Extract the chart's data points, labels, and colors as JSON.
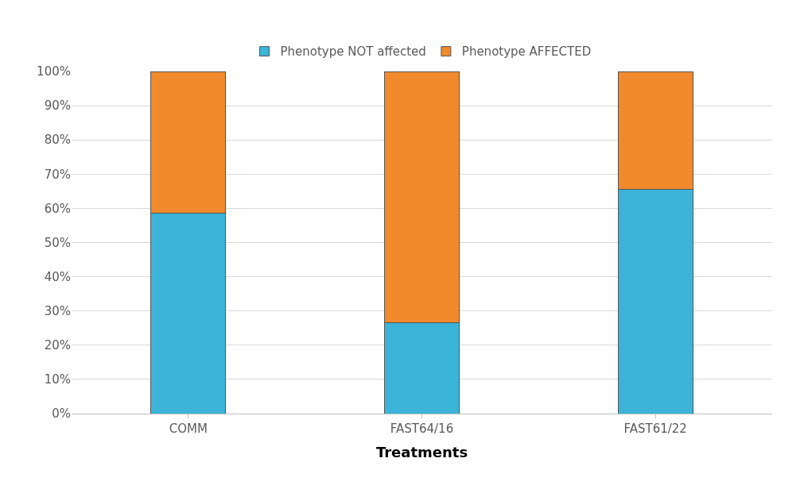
{
  "chart_data": {
    "type": "bar",
    "stacked": true,
    "xlabel": "Treatments",
    "categories": [
      "COMM",
      "FAST64/16",
      "FAST61/22"
    ],
    "series": [
      {
        "name": "Phenotype NOT affected",
        "color": "#3bb4d8",
        "values": [
          58.5,
          26.5,
          65.5
        ]
      },
      {
        "name": "Phenotype AFFECTED",
        "color": "#f08a2c",
        "values": [
          41.5,
          73.5,
          34.5
        ]
      }
    ],
    "ylim": [
      0,
      100
    ],
    "yticks": [
      {
        "value": 0,
        "label": "0%"
      },
      {
        "value": 10,
        "label": "10%"
      },
      {
        "value": 20,
        "label": "20%"
      },
      {
        "value": 30,
        "label": "30%"
      },
      {
        "value": 40,
        "label": "40%"
      },
      {
        "value": 50,
        "label": "50%"
      },
      {
        "value": 60,
        "label": "60%"
      },
      {
        "value": 70,
        "label": "70%"
      },
      {
        "value": 80,
        "label": "80%"
      },
      {
        "value": 90,
        "label": "90%"
      },
      {
        "value": 100,
        "label": "100%"
      }
    ],
    "grid": "y",
    "legend": "top"
  }
}
